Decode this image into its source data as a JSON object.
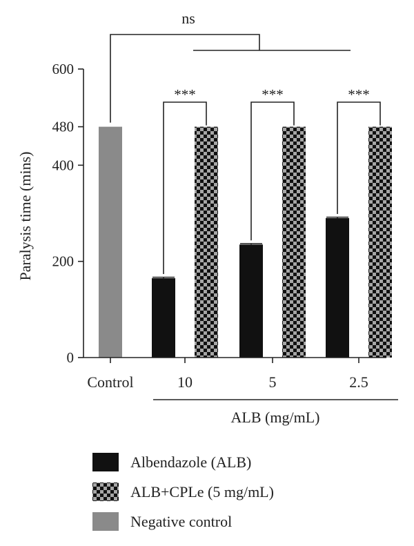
{
  "chart_data": {
    "type": "bar",
    "title": "",
    "ylabel": "Paralysis time (mins)",
    "xlabel": "ALB (mg/mL)",
    "ylim": [
      0,
      600
    ],
    "yticks": [
      {
        "value": 0,
        "label": "0"
      },
      {
        "value": 200,
        "label": "200"
      },
      {
        "value": 400,
        "label": "400"
      },
      {
        "value": 480,
        "label": "480"
      },
      {
        "value": 600,
        "label": "600"
      }
    ],
    "categories": [
      "Control",
      "10",
      "5",
      "2.5"
    ],
    "series": [
      {
        "name": "Albendazole (ALB)",
        "key": "alb",
        "values": [
          null,
          165,
          235,
          290
        ],
        "errors": [
          null,
          2,
          2,
          2
        ]
      },
      {
        "name": "ALB+CPLe (5 mg/mL)",
        "key": "cple",
        "values": [
          null,
          480,
          480,
          480
        ],
        "errors": [
          null,
          0,
          0,
          0
        ]
      },
      {
        "name": "Negative control",
        "key": "neg",
        "values": [
          480,
          null,
          null,
          null
        ],
        "errors": [
          0,
          null,
          null,
          null
        ]
      }
    ],
    "significance": [
      {
        "label": "***",
        "category": "10"
      },
      {
        "label": "***",
        "category": "5"
      },
      {
        "label": "***",
        "category": "2.5"
      }
    ],
    "overall_comparison": {
      "label": "ns"
    },
    "legend_position": "bottom",
    "colors": {
      "alb": "#111111",
      "cple_dark": "#111111",
      "cple_light": "#a6a6a6",
      "neg": "#8a8a8a",
      "axis": "#222222"
    }
  }
}
